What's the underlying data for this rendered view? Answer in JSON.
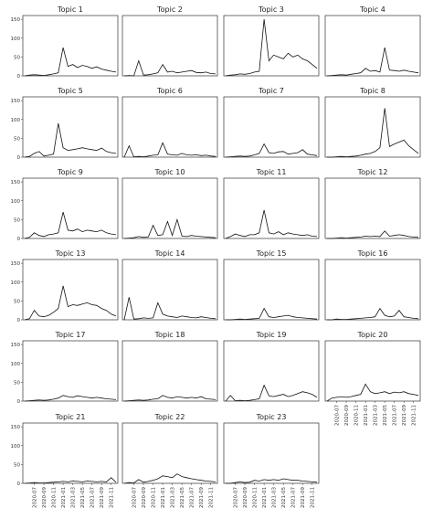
{
  "chart_data": {
    "type": "line",
    "x": [
      "2020-05",
      "2020-06",
      "2020-07",
      "2020-08",
      "2020-09",
      "2020-10",
      "2020-11",
      "2020-12",
      "2021-01",
      "2021-02",
      "2021-03",
      "2021-04",
      "2021-05",
      "2021-06",
      "2021-07",
      "2021-08",
      "2021-09",
      "2021-10",
      "2021-11",
      "2021-12"
    ],
    "xticks": [
      "2020-07",
      "2020-09",
      "2020-11",
      "2021-01",
      "2021-03",
      "2021-05",
      "2021-07",
      "2021-09",
      "2021-11"
    ],
    "ylim": [
      0,
      160
    ],
    "yticks": [
      0,
      50,
      100,
      150
    ],
    "series": [
      {
        "name": "Topic 1",
        "color": "#111111",
        "values": [
          0,
          2,
          3,
          2,
          1,
          3,
          5,
          8,
          75,
          25,
          30,
          22,
          28,
          25,
          20,
          24,
          18,
          15,
          12,
          10
        ]
      },
      {
        "name": "Topic 2",
        "color": "#111111",
        "values": [
          0,
          1,
          0,
          40,
          2,
          3,
          5,
          8,
          30,
          10,
          12,
          8,
          10,
          12,
          14,
          9,
          8,
          10,
          6,
          5
        ]
      },
      {
        "name": "Topic 3",
        "color": "#111111",
        "values": [
          0,
          2,
          3,
          5,
          4,
          6,
          10,
          12,
          150,
          40,
          55,
          50,
          45,
          60,
          50,
          55,
          45,
          40,
          30,
          20
        ]
      },
      {
        "name": "Topic 4",
        "color": "#111111",
        "values": [
          0,
          1,
          2,
          3,
          2,
          4,
          6,
          8,
          20,
          12,
          14,
          10,
          75,
          15,
          14,
          12,
          15,
          12,
          10,
          8
        ]
      },
      {
        "name": "Topic 5",
        "color": "#111111",
        "values": [
          0,
          2,
          10,
          15,
          3,
          5,
          8,
          90,
          25,
          18,
          20,
          22,
          25,
          22,
          20,
          18,
          24,
          15,
          12,
          10
        ]
      },
      {
        "name": "Topic 6",
        "color": "#111111",
        "values": [
          0,
          30,
          1,
          2,
          1,
          3,
          5,
          6,
          38,
          8,
          6,
          5,
          10,
          6,
          5,
          6,
          4,
          5,
          3,
          2
        ]
      },
      {
        "name": "Topic 7",
        "color": "#111111",
        "values": [
          0,
          1,
          2,
          3,
          2,
          3,
          6,
          10,
          35,
          12,
          10,
          14,
          15,
          8,
          10,
          12,
          20,
          8,
          6,
          4
        ]
      },
      {
        "name": "Topic 8",
        "color": "#111111",
        "values": [
          0,
          0,
          1,
          2,
          1,
          2,
          3,
          5,
          8,
          10,
          15,
          25,
          130,
          28,
          35,
          40,
          45,
          30,
          20,
          10
        ]
      },
      {
        "name": "Topic 9",
        "color": "#111111",
        "values": [
          0,
          3,
          15,
          8,
          5,
          10,
          12,
          15,
          70,
          22,
          20,
          25,
          18,
          22,
          20,
          18,
          22,
          15,
          12,
          10
        ]
      },
      {
        "name": "Topic 10",
        "color": "#111111",
        "values": [
          0,
          1,
          2,
          5,
          3,
          4,
          35,
          8,
          10,
          45,
          8,
          50,
          6,
          5,
          8,
          6,
          5,
          4,
          3,
          2
        ]
      },
      {
        "name": "Topic 11",
        "color": "#111111",
        "values": [
          0,
          5,
          12,
          8,
          5,
          10,
          10,
          15,
          75,
          15,
          12,
          18,
          10,
          15,
          12,
          10,
          8,
          10,
          6,
          5
        ]
      },
      {
        "name": "Topic 12",
        "color": "#111111",
        "values": [
          0,
          0,
          1,
          2,
          1,
          2,
          3,
          4,
          6,
          5,
          6,
          5,
          20,
          6,
          8,
          10,
          8,
          5,
          4,
          3
        ]
      },
      {
        "name": "Topic 13",
        "color": "#111111",
        "values": [
          0,
          3,
          25,
          10,
          8,
          12,
          20,
          30,
          90,
          35,
          40,
          38,
          42,
          45,
          40,
          38,
          30,
          25,
          15,
          10
        ]
      },
      {
        "name": "Topic 14",
        "color": "#111111",
        "values": [
          0,
          60,
          2,
          3,
          5,
          4,
          5,
          45,
          15,
          10,
          8,
          6,
          10,
          8,
          6,
          5,
          8,
          6,
          4,
          3
        ]
      },
      {
        "name": "Topic 15",
        "color": "#111111",
        "values": [
          0,
          0,
          1,
          2,
          1,
          2,
          3,
          4,
          30,
          8,
          6,
          8,
          10,
          12,
          8,
          6,
          5,
          4,
          3,
          2
        ]
      },
      {
        "name": "Topic 16",
        "color": "#111111",
        "values": [
          0,
          0,
          2,
          1,
          1,
          2,
          3,
          4,
          5,
          6,
          8,
          30,
          12,
          8,
          10,
          25,
          8,
          6,
          4,
          3
        ]
      },
      {
        "name": "Topic 17",
        "color": "#111111",
        "values": [
          0,
          1,
          2,
          3,
          2,
          3,
          5,
          8,
          15,
          12,
          10,
          14,
          12,
          10,
          8,
          10,
          8,
          6,
          5,
          4
        ]
      },
      {
        "name": "Topic 18",
        "color": "#111111",
        "values": [
          0,
          1,
          2,
          3,
          2,
          3,
          5,
          6,
          15,
          10,
          8,
          12,
          10,
          8,
          10,
          8,
          12,
          6,
          5,
          4
        ]
      },
      {
        "name": "Topic 19",
        "color": "#111111",
        "values": [
          0,
          15,
          1,
          2,
          1,
          2,
          4,
          6,
          42,
          14,
          12,
          15,
          18,
          12,
          15,
          20,
          25,
          22,
          18,
          10
        ]
      },
      {
        "name": "Topic 20",
        "color": "#111111",
        "values": [
          0,
          8,
          10,
          12,
          10,
          12,
          15,
          18,
          45,
          25,
          20,
          22,
          25,
          20,
          24,
          22,
          25,
          20,
          18,
          15
        ]
      },
      {
        "name": "Topic 21",
        "color": "#111111",
        "values": [
          0,
          1,
          2,
          1,
          1,
          2,
          3,
          4,
          5,
          4,
          6,
          5,
          4,
          6,
          5,
          4,
          5,
          4,
          15,
          3
        ]
      },
      {
        "name": "Topic 22",
        "color": "#111111",
        "values": [
          0,
          2,
          1,
          10,
          3,
          5,
          8,
          12,
          20,
          18,
          15,
          25,
          18,
          15,
          12,
          10,
          8,
          6,
          5,
          4
        ]
      },
      {
        "name": "Topic 23",
        "color": "#111111",
        "values": [
          0,
          0,
          2,
          4,
          2,
          3,
          8,
          6,
          10,
          8,
          10,
          8,
          12,
          10,
          8,
          8,
          6,
          5,
          4,
          3
        ]
      }
    ]
  }
}
